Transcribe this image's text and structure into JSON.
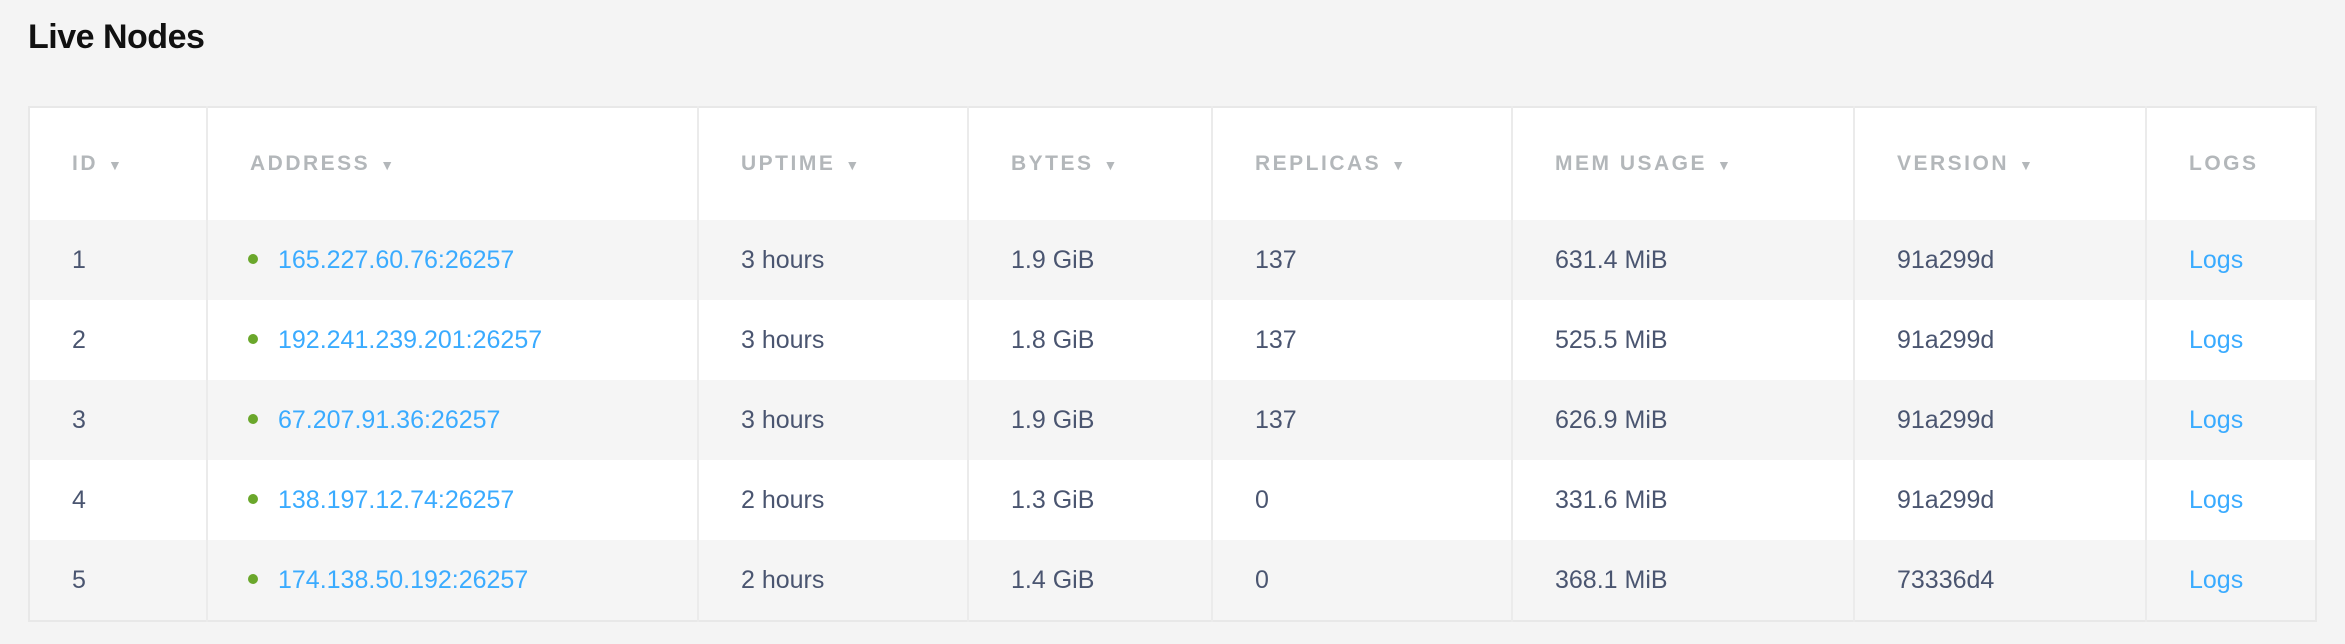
{
  "title": "Live Nodes",
  "colors": {
    "link": "#3aabff",
    "status_live": "#6aa72b",
    "text": "#4a5570",
    "header": "#b3b7ba"
  },
  "columns": [
    {
      "label": "ID",
      "sortable": true
    },
    {
      "label": "ADDRESS",
      "sortable": true
    },
    {
      "label": "UPTIME",
      "sortable": true
    },
    {
      "label": "BYTES",
      "sortable": true
    },
    {
      "label": "REPLICAS",
      "sortable": true
    },
    {
      "label": "MEM USAGE",
      "sortable": true
    },
    {
      "label": "VERSION",
      "sortable": true
    },
    {
      "label": "LOGS",
      "sortable": false
    }
  ],
  "sort_arrow": "▼",
  "rows": [
    {
      "id": "1",
      "address": "165.227.60.76:26257",
      "uptime": "3 hours",
      "bytes": "1.9 GiB",
      "replicas": "137",
      "mem": "631.4 MiB",
      "version": "91a299d",
      "logs": "Logs"
    },
    {
      "id": "2",
      "address": "192.241.239.201:26257",
      "uptime": "3 hours",
      "bytes": "1.8 GiB",
      "replicas": "137",
      "mem": "525.5 MiB",
      "version": "91a299d",
      "logs": "Logs"
    },
    {
      "id": "3",
      "address": "67.207.91.36:26257",
      "uptime": "3 hours",
      "bytes": "1.9 GiB",
      "replicas": "137",
      "mem": "626.9 MiB",
      "version": "91a299d",
      "logs": "Logs"
    },
    {
      "id": "4",
      "address": "138.197.12.74:26257",
      "uptime": "2 hours",
      "bytes": "1.3 GiB",
      "replicas": "0",
      "mem": "331.6 MiB",
      "version": "91a299d",
      "logs": "Logs"
    },
    {
      "id": "5",
      "address": "174.138.50.192:26257",
      "uptime": "2 hours",
      "bytes": "1.4 GiB",
      "replicas": "0",
      "mem": "368.1 MiB",
      "version": "73336d4",
      "logs": "Logs"
    }
  ]
}
